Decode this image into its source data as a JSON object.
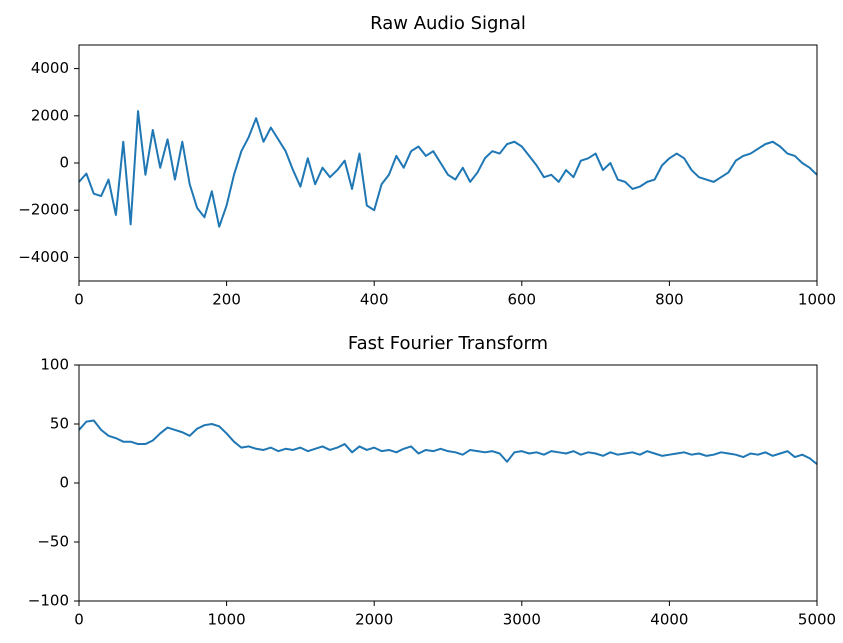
{
  "chart_data": [
    {
      "type": "line",
      "title": "Raw Audio Signal",
      "x": [
        0,
        10,
        20,
        30,
        40,
        50,
        60,
        70,
        80,
        90,
        100,
        110,
        120,
        130,
        140,
        150,
        160,
        170,
        180,
        190,
        200,
        210,
        220,
        230,
        240,
        250,
        260,
        270,
        280,
        290,
        300,
        310,
        320,
        330,
        340,
        350,
        360,
        370,
        380,
        390,
        400,
        410,
        420,
        430,
        440,
        450,
        460,
        470,
        480,
        490,
        500,
        510,
        520,
        530,
        540,
        550,
        560,
        570,
        580,
        590,
        600,
        610,
        620,
        630,
        640,
        650,
        660,
        670,
        680,
        690,
        700,
        710,
        720,
        730,
        740,
        750,
        760,
        770,
        780,
        790,
        800,
        810,
        820,
        830,
        840,
        850,
        860,
        870,
        880,
        890,
        900,
        910,
        920,
        930,
        940,
        950,
        960,
        970,
        980,
        990,
        1000
      ],
      "series": [
        {
          "color": "#1f77b4",
          "values": [
            -800,
            -450,
            -1300,
            -1400,
            -700,
            -2200,
            900,
            -2600,
            2200,
            -500,
            1400,
            -200,
            1000,
            -700,
            900,
            -900,
            -1900,
            -2300,
            -1200,
            -2700,
            -1800,
            -500,
            500,
            1100,
            1900,
            900,
            1500,
            1000,
            500,
            -300,
            -1000,
            200,
            -900,
            -200,
            -600,
            -300,
            100,
            -1100,
            400,
            -1800,
            -2000,
            -900,
            -500,
            300,
            -200,
            500,
            700,
            300,
            500,
            0,
            -500,
            -700,
            -200,
            -800,
            -400,
            200,
            500,
            400,
            800,
            900,
            700,
            300,
            -100,
            -600,
            -500,
            -800,
            -300,
            -600,
            100,
            200,
            400,
            -300,
            0,
            -700,
            -800,
            -1100,
            -1000,
            -800,
            -700,
            -100,
            200,
            400,
            200,
            -300,
            -600,
            -700,
            -800,
            -600,
            -400,
            100,
            300,
            400,
            600,
            800,
            900,
            700,
            400,
            300,
            0,
            -200,
            -500
          ]
        }
      ],
      "xlim": [
        0,
        1000
      ],
      "xticks": [
        0,
        200,
        400,
        600,
        800,
        1000
      ],
      "ylim": [
        -5000,
        5000
      ],
      "yticks": [
        {
          "value": -4000,
          "label": "−4000"
        },
        {
          "value": -2000,
          "label": "−2000"
        },
        0,
        2000,
        4000
      ]
    },
    {
      "type": "line",
      "title": "Fast Fourier Transform",
      "x": [
        0,
        50,
        100,
        150,
        200,
        250,
        300,
        350,
        400,
        450,
        500,
        550,
        600,
        650,
        700,
        750,
        800,
        850,
        900,
        950,
        1000,
        1050,
        1100,
        1150,
        1200,
        1250,
        1300,
        1350,
        1400,
        1450,
        1500,
        1550,
        1600,
        1650,
        1700,
        1750,
        1800,
        1850,
        1900,
        1950,
        2000,
        2050,
        2100,
        2150,
        2200,
        2250,
        2300,
        2350,
        2400,
        2450,
        2500,
        2550,
        2600,
        2650,
        2700,
        2750,
        2800,
        2850,
        2900,
        2950,
        3000,
        3050,
        3100,
        3150,
        3200,
        3250,
        3300,
        3350,
        3400,
        3450,
        3500,
        3550,
        3600,
        3650,
        3700,
        3750,
        3800,
        3850,
        3900,
        3950,
        4000,
        4050,
        4100,
        4150,
        4200,
        4250,
        4300,
        4350,
        4400,
        4450,
        4500,
        4550,
        4600,
        4650,
        4700,
        4750,
        4800,
        4850,
        4900,
        4950,
        5000
      ],
      "series": [
        {
          "color": "#1f77b4",
          "values": [
            45,
            52,
            53,
            45,
            40,
            38,
            35,
            35,
            33,
            33,
            36,
            42,
            47,
            45,
            43,
            40,
            46,
            49,
            50,
            48,
            42,
            35,
            30,
            31,
            29,
            28,
            30,
            27,
            29,
            28,
            30,
            27,
            29,
            31,
            28,
            30,
            33,
            26,
            31,
            28,
            30,
            27,
            28,
            26,
            29,
            31,
            25,
            28,
            27,
            29,
            27,
            26,
            24,
            28,
            27,
            26,
            27,
            25,
            18,
            26,
            27,
            25,
            26,
            24,
            27,
            26,
            25,
            27,
            24,
            26,
            25,
            23,
            26,
            24,
            25,
            26,
            24,
            27,
            25,
            23,
            24,
            25,
            26,
            24,
            25,
            23,
            24,
            26,
            25,
            24,
            22,
            25,
            24,
            26,
            23,
            25,
            27,
            22,
            24,
            21,
            16
          ]
        }
      ],
      "xlim": [
        0,
        5000
      ],
      "xticks": [
        0,
        1000,
        2000,
        3000,
        4000,
        5000
      ],
      "ylim": [
        -100,
        100
      ],
      "yticks": [
        {
          "value": -100,
          "label": "−100"
        },
        {
          "value": -50,
          "label": "−50"
        },
        0,
        50,
        100
      ]
    }
  ]
}
